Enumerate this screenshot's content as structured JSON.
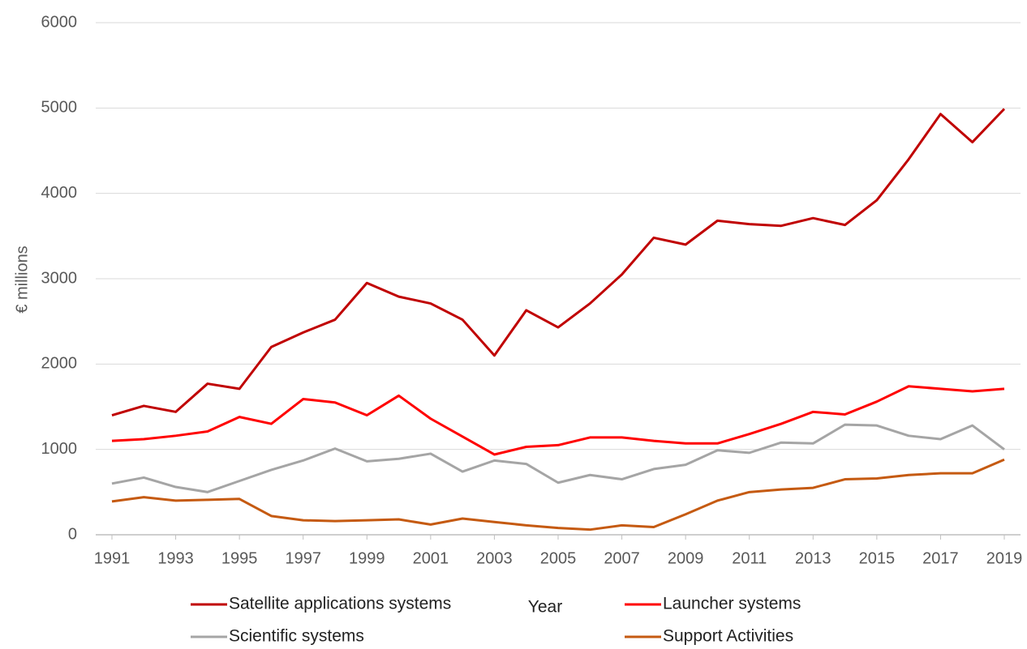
{
  "chart_data": {
    "type": "line",
    "x": [
      1991,
      1992,
      1993,
      1994,
      1995,
      1996,
      1997,
      1998,
      1999,
      2000,
      2001,
      2002,
      2003,
      2004,
      2005,
      2006,
      2007,
      2008,
      2009,
      2010,
      2011,
      2012,
      2013,
      2014,
      2015,
      2016,
      2017,
      2018,
      2019
    ],
    "series": [
      {
        "name": "Satellite applications systems",
        "color": "#c00000",
        "values": [
          1400,
          1510,
          1440,
          1770,
          1710,
          2200,
          2370,
          2520,
          2950,
          2790,
          2710,
          2520,
          2100,
          2630,
          2430,
          2710,
          3050,
          3480,
          3400,
          3680,
          3640,
          3620,
          3710,
          3630,
          3920,
          4400,
          4930,
          4600,
          4990
        ]
      },
      {
        "name": "Launcher systems",
        "color": "#ff0000",
        "values": [
          1100,
          1120,
          1160,
          1210,
          1380,
          1300,
          1590,
          1550,
          1400,
          1630,
          1360,
          1150,
          940,
          1030,
          1050,
          1140,
          1140,
          1100,
          1070,
          1070,
          1180,
          1300,
          1440,
          1410,
          1560,
          1740,
          1710,
          1680,
          1710
        ]
      },
      {
        "name": "Scientific systems",
        "color": "#a5a5a5",
        "values": [
          600,
          670,
          560,
          500,
          630,
          760,
          870,
          1010,
          860,
          890,
          950,
          740,
          870,
          830,
          610,
          700,
          650,
          770,
          820,
          990,
          960,
          1080,
          1070,
          1290,
          1280,
          1160,
          1120,
          1280,
          1000
        ]
      },
      {
        "name": "Support Activities",
        "color": "#c55a11",
        "values": [
          390,
          440,
          400,
          410,
          420,
          220,
          170,
          160,
          170,
          180,
          120,
          190,
          150,
          110,
          80,
          60,
          110,
          90,
          240,
          400,
          500,
          530,
          550,
          650,
          660,
          700,
          720,
          720,
          880
        ]
      }
    ],
    "xlabel": "Year",
    "ylabel": "€ millions",
    "xlim": [
      1991,
      2019
    ],
    "xticks": [
      1991,
      1993,
      1995,
      1997,
      1999,
      2001,
      2003,
      2005,
      2007,
      2009,
      2011,
      2013,
      2015,
      2017,
      2019
    ],
    "ylim": [
      0,
      6000
    ],
    "yticks": [
      0,
      1000,
      2000,
      3000,
      4000,
      5000,
      6000
    ],
    "grid": true,
    "legend": "bottom"
  }
}
